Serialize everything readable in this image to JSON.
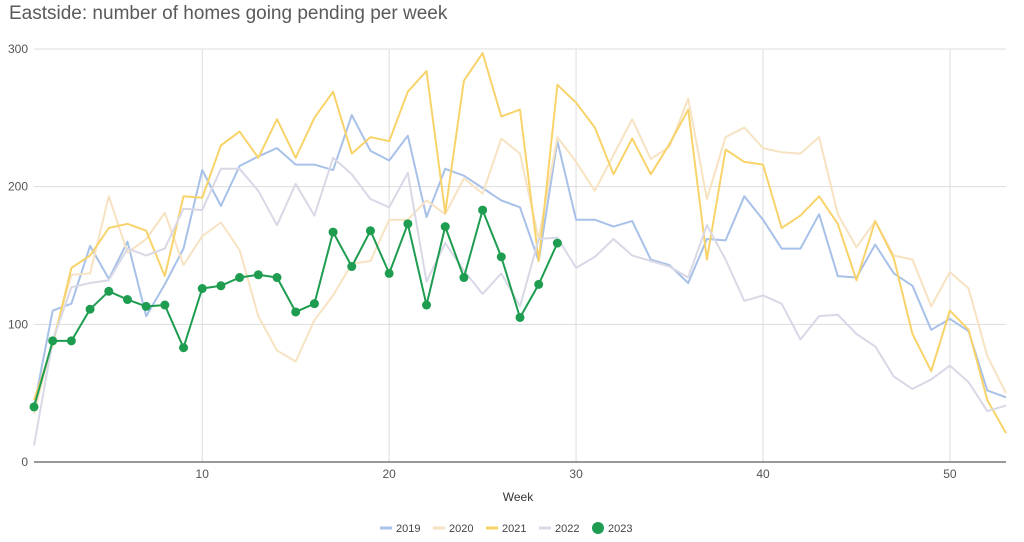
{
  "chart_data": {
    "type": "line",
    "title": "Eastside: number of homes going pending per week",
    "xlabel": "Week",
    "ylabel": "",
    "xlim": [
      1,
      53
    ],
    "ylim": [
      0,
      300
    ],
    "x_ticks": [
      10,
      20,
      30,
      40,
      50
    ],
    "y_ticks": [
      0,
      100,
      200,
      300
    ],
    "grid": true,
    "legend_position": "bottom",
    "series": [
      {
        "name": "2019",
        "color": "#a7c1e8",
        "markers": false,
        "x": [
          1,
          2,
          3,
          4,
          5,
          6,
          7,
          8,
          9,
          10,
          11,
          12,
          13,
          14,
          15,
          16,
          17,
          18,
          19,
          20,
          21,
          22,
          23,
          24,
          25,
          26,
          27,
          28,
          29,
          30,
          31,
          32,
          33,
          34,
          35,
          36,
          37,
          38,
          39,
          40,
          41,
          42,
          43,
          44,
          45,
          46,
          47,
          48,
          49,
          50,
          51,
          52,
          53
        ],
        "values": [
          40,
          110,
          115,
          157,
          133,
          160,
          106,
          129,
          155,
          212,
          186,
          215,
          222,
          228,
          216,
          216,
          212,
          252,
          226,
          219,
          237,
          178,
          213,
          208,
          199,
          190,
          185,
          146,
          233,
          176,
          176,
          171,
          175,
          147,
          143,
          130,
          162,
          161,
          193,
          176,
          155,
          155,
          180,
          135,
          134,
          158,
          137,
          128,
          96,
          104,
          95,
          52,
          47
        ]
      },
      {
        "name": "2020",
        "color": "#f7e2c2",
        "markers": false,
        "x": [
          1,
          2,
          3,
          4,
          5,
          6,
          7,
          8,
          9,
          10,
          11,
          12,
          13,
          14,
          15,
          16,
          17,
          18,
          19,
          20,
          21,
          22,
          23,
          24,
          25,
          26,
          27,
          28,
          29,
          30,
          31,
          32,
          33,
          34,
          35,
          36,
          37,
          38,
          39,
          40,
          41,
          42,
          43,
          44,
          45,
          46,
          47,
          48,
          49,
          50,
          51,
          52,
          53
        ],
        "values": [
          35,
          88,
          136,
          137,
          193,
          152,
          162,
          181,
          143,
          164,
          174,
          154,
          106,
          81,
          73,
          103,
          121,
          144,
          146,
          176,
          176,
          190,
          180,
          206,
          195,
          235,
          224,
          162,
          236,
          218,
          197,
          223,
          249,
          220,
          229,
          264,
          191,
          236,
          243,
          228,
          225,
          224,
          236,
          180,
          156,
          175,
          150,
          147,
          113,
          138,
          126,
          77,
          50
        ]
      },
      {
        "name": "2021",
        "color": "#f8d36a",
        "markers": false,
        "x": [
          1,
          2,
          3,
          4,
          5,
          6,
          7,
          8,
          9,
          10,
          11,
          12,
          13,
          14,
          15,
          16,
          17,
          18,
          19,
          20,
          21,
          22,
          23,
          24,
          25,
          26,
          27,
          28,
          29,
          30,
          31,
          32,
          33,
          34,
          35,
          36,
          37,
          38,
          39,
          40,
          41,
          42,
          43,
          44,
          45,
          46,
          47,
          48,
          49,
          50,
          51,
          52,
          53
        ],
        "values": [
          45,
          85,
          141,
          150,
          170,
          173,
          168,
          135,
          193,
          192,
          230,
          240,
          221,
          249,
          221,
          250,
          269,
          224,
          236,
          233,
          269,
          284,
          181,
          277,
          297,
          251,
          256,
          146,
          274,
          261,
          243,
          209,
          235,
          209,
          231,
          256,
          147,
          227,
          218,
          216,
          170,
          179,
          193,
          173,
          132,
          175,
          148,
          93,
          66,
          110,
          96,
          45,
          21
        ]
      },
      {
        "name": "2022",
        "color": "#d8d8e6",
        "markers": false,
        "x": [
          1,
          2,
          3,
          4,
          5,
          6,
          7,
          8,
          9,
          10,
          11,
          12,
          13,
          14,
          15,
          16,
          17,
          18,
          19,
          20,
          21,
          22,
          23,
          24,
          25,
          26,
          27,
          28,
          29,
          30,
          31,
          32,
          33,
          34,
          35,
          36,
          37,
          38,
          39,
          40,
          41,
          42,
          43,
          44,
          45,
          46,
          47,
          48,
          49,
          50,
          51,
          52,
          53
        ],
        "values": [
          12,
          88,
          127,
          130,
          132,
          155,
          150,
          155,
          184,
          183,
          213,
          213,
          197,
          172,
          202,
          179,
          221,
          209,
          191,
          185,
          210,
          131,
          159,
          139,
          122,
          137,
          113,
          162,
          163,
          141,
          149,
          162,
          150,
          146,
          142,
          134,
          172,
          147,
          117,
          121,
          115,
          89,
          106,
          107,
          93,
          84,
          62,
          53,
          60,
          70,
          58,
          37,
          41
        ]
      },
      {
        "name": "2023",
        "color": "#1e9c50",
        "markers": true,
        "x": [
          1,
          2,
          3,
          4,
          5,
          6,
          7,
          8,
          9,
          10,
          11,
          12,
          13,
          14,
          15,
          16,
          17,
          18,
          19,
          20,
          21,
          22,
          23,
          24,
          25,
          26,
          27,
          28,
          29
        ],
        "values": [
          40,
          88,
          88,
          111,
          124,
          118,
          113,
          114,
          83,
          126,
          128,
          134,
          136,
          134,
          109,
          115,
          167,
          142,
          168,
          137,
          173,
          114,
          171,
          134,
          183,
          149,
          105,
          129,
          159
        ]
      }
    ]
  }
}
